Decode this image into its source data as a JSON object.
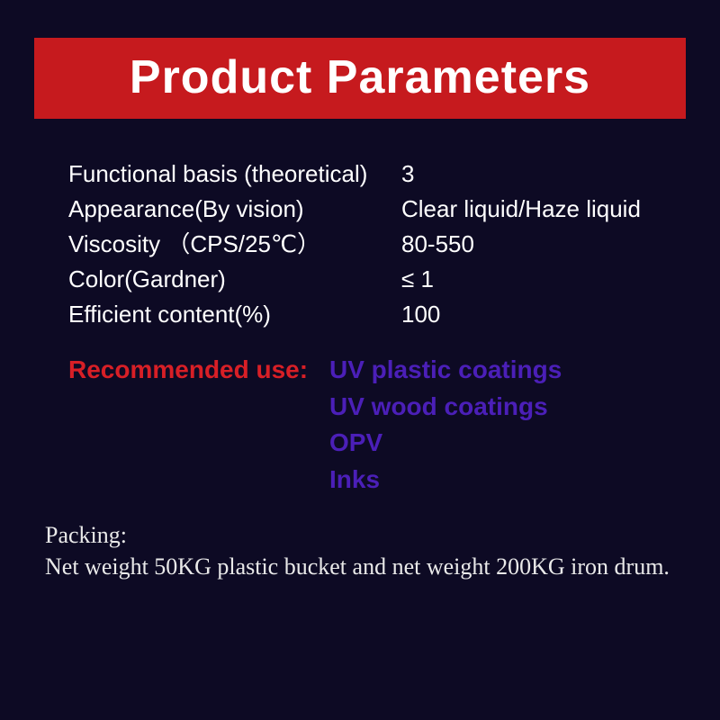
{
  "colors": {
    "page_bg": "#0d0a24",
    "banner_bg": "#c61a1e",
    "banner_text": "#ffffff",
    "param_text": "#ffffff",
    "rec_label": "#d81f26",
    "rec_value": "#4b1fb8",
    "packing_text": "#e9e9e9"
  },
  "banner": {
    "title": "Product Parameters"
  },
  "parameters": [
    {
      "label": "Functional basis (theoretical)",
      "value": "3"
    },
    {
      "label": "Appearance(By vision)",
      "value": " Clear liquid/Haze liquid"
    },
    {
      "label": "Viscosity （CPS/25℃）",
      "value": "80-550"
    },
    {
      "label": "Color(Gardner)",
      "value": "≤ 1"
    },
    {
      "label": "Efficient content(%)",
      "value": "100"
    }
  ],
  "recommended": {
    "label": "Recommended use:",
    "uses": [
      "UV plastic coatings",
      "UV wood coatings",
      "OPV",
      "Inks"
    ]
  },
  "packing": {
    "label": "Packing:",
    "body": "Net weight 50KG plastic bucket and net weight 200KG iron drum."
  }
}
